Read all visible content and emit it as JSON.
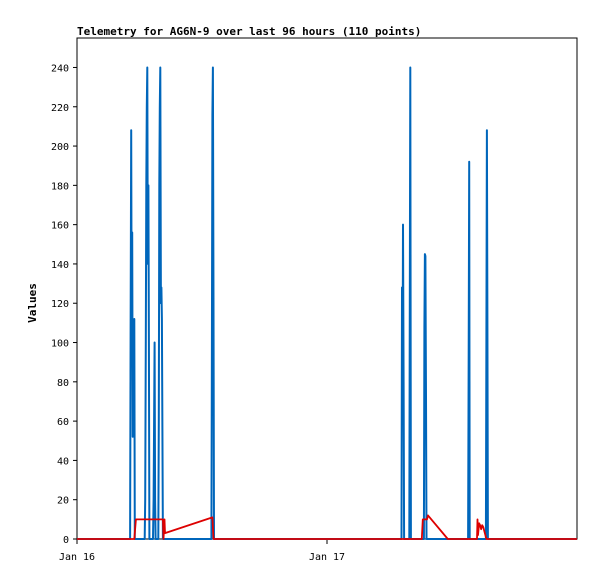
{
  "chart_data": {
    "type": "line",
    "title": "Telemetry for AG6N-9 over last 96 hours (110 points)",
    "ylabel": "Values",
    "xlabel": "",
    "ylim": [
      0,
      255
    ],
    "xlim": [
      0,
      96
    ],
    "yticks": [
      0,
      20,
      40,
      60,
      80,
      100,
      120,
      140,
      160,
      180,
      200,
      220,
      240
    ],
    "xticks": [
      {
        "value": 0,
        "label": "Jan 16"
      },
      {
        "value": 48,
        "label": "Jan 17"
      }
    ],
    "grid": false,
    "series": [
      {
        "color": "#0066bb",
        "points": [
          [
            0,
            0
          ],
          [
            10.2,
            0
          ],
          [
            10.3,
            104
          ],
          [
            10.4,
            208
          ],
          [
            10.5,
            100
          ],
          [
            10.6,
            156
          ],
          [
            10.7,
            52
          ],
          [
            10.8,
            76
          ],
          [
            10.9,
            100
          ],
          [
            11.0,
            112
          ],
          [
            11.1,
            0
          ],
          [
            13.0,
            0
          ],
          [
            13.1,
            20
          ],
          [
            13.2,
            100
          ],
          [
            13.3,
            180
          ],
          [
            13.4,
            220
          ],
          [
            13.5,
            240
          ],
          [
            13.6,
            140
          ],
          [
            13.7,
            180
          ],
          [
            13.8,
            100
          ],
          [
            13.9,
            0
          ],
          [
            14.6,
            0
          ],
          [
            14.7,
            20
          ],
          [
            14.8,
            60
          ],
          [
            14.9,
            100
          ],
          [
            15.0,
            20
          ],
          [
            15.1,
            0
          ],
          [
            15.6,
            0
          ],
          [
            15.7,
            60
          ],
          [
            15.8,
            180
          ],
          [
            15.9,
            220
          ],
          [
            16.0,
            240
          ],
          [
            16.1,
            120
          ],
          [
            16.2,
            128
          ],
          [
            16.3,
            112
          ],
          [
            16.4,
            56
          ],
          [
            16.5,
            0
          ],
          [
            25.8,
            0
          ],
          [
            25.9,
            96
          ],
          [
            26.0,
            216
          ],
          [
            26.1,
            240
          ],
          [
            26.2,
            120
          ],
          [
            26.3,
            0
          ],
          [
            62.3,
            0
          ],
          [
            62.4,
            128
          ],
          [
            62.5,
            64
          ],
          [
            62.6,
            160
          ],
          [
            62.7,
            80
          ],
          [
            62.8,
            0
          ],
          [
            63.8,
            0
          ],
          [
            63.9,
            120
          ],
          [
            64.0,
            240
          ],
          [
            64.1,
            0
          ],
          [
            66.6,
            0
          ],
          [
            66.7,
            108
          ],
          [
            66.8,
            145
          ],
          [
            66.9,
            144
          ],
          [
            67.0,
            72
          ],
          [
            67.1,
            0
          ],
          [
            75.1,
            0
          ],
          [
            75.2,
            96
          ],
          [
            75.3,
            192
          ],
          [
            75.4,
            0
          ],
          [
            78.5,
            0
          ],
          [
            78.6,
            104
          ],
          [
            78.7,
            208
          ],
          [
            78.8,
            112
          ],
          [
            78.9,
            0
          ],
          [
            96,
            0
          ]
        ]
      },
      {
        "color": "#dd0000",
        "points": [
          [
            0,
            0
          ],
          [
            11.0,
            0
          ],
          [
            11.3,
            10
          ],
          [
            16.5,
            10
          ],
          [
            16.6,
            0
          ],
          [
            16.8,
            10
          ],
          [
            16.9,
            3
          ],
          [
            26.0,
            11
          ],
          [
            26.2,
            0
          ],
          [
            66.2,
            0
          ],
          [
            66.4,
            10
          ],
          [
            67.2,
            10
          ],
          [
            67.4,
            12
          ],
          [
            71.2,
            0
          ],
          [
            76.8,
            0
          ],
          [
            76.9,
            10
          ],
          [
            77.0,
            2
          ],
          [
            77.2,
            8
          ],
          [
            77.4,
            7
          ],
          [
            77.6,
            5
          ],
          [
            77.8,
            7
          ],
          [
            78.0,
            6
          ],
          [
            78.6,
            0
          ],
          [
            96,
            0
          ]
        ]
      }
    ]
  }
}
